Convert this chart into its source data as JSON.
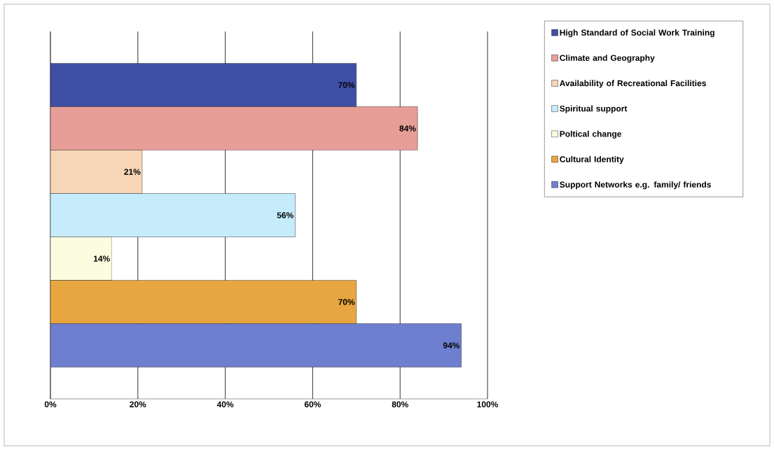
{
  "chart_data": {
    "type": "bar",
    "orientation": "horizontal",
    "categories": [
      null
    ],
    "series": [
      {
        "name": "High Standard of Social Work Training",
        "color": "#3f4fa6",
        "values": [
          70
        ],
        "value_labels": [
          "70%"
        ]
      },
      {
        "name": "Climate and Geography",
        "color": "#e89e98",
        "values": [
          84
        ],
        "value_labels": [
          "84%"
        ]
      },
      {
        "name": "Availability of Recreational Facilities",
        "color": "#f6d6b6",
        "values": [
          21
        ],
        "value_labels": [
          "21%"
        ]
      },
      {
        "name": "Spiritual support",
        "color": "#c6ecfb",
        "values": [
          56
        ],
        "value_labels": [
          "56%"
        ]
      },
      {
        "name": "Poltical change",
        "color": "#fcfce0",
        "values": [
          14
        ],
        "value_labels": [
          "14%"
        ]
      },
      {
        "name": "Cultural Identity",
        "color": "#e8a640",
        "values": [
          70
        ],
        "value_labels": [
          "70%"
        ]
      },
      {
        "name": "Support Networks e.g. family/ friends",
        "color": "#6f7fcf",
        "values": [
          94
        ],
        "value_labels": [
          "94%"
        ]
      }
    ],
    "xlim": [
      0,
      100
    ],
    "xticks": [
      {
        "value": 0,
        "label": "0%"
      },
      {
        "value": 20,
        "label": "20%"
      },
      {
        "value": 40,
        "label": "40%"
      },
      {
        "value": 60,
        "label": "60%"
      },
      {
        "value": 80,
        "label": "80%"
      },
      {
        "value": 100,
        "label": "100%"
      }
    ],
    "grid": "x",
    "legend": "right"
  }
}
